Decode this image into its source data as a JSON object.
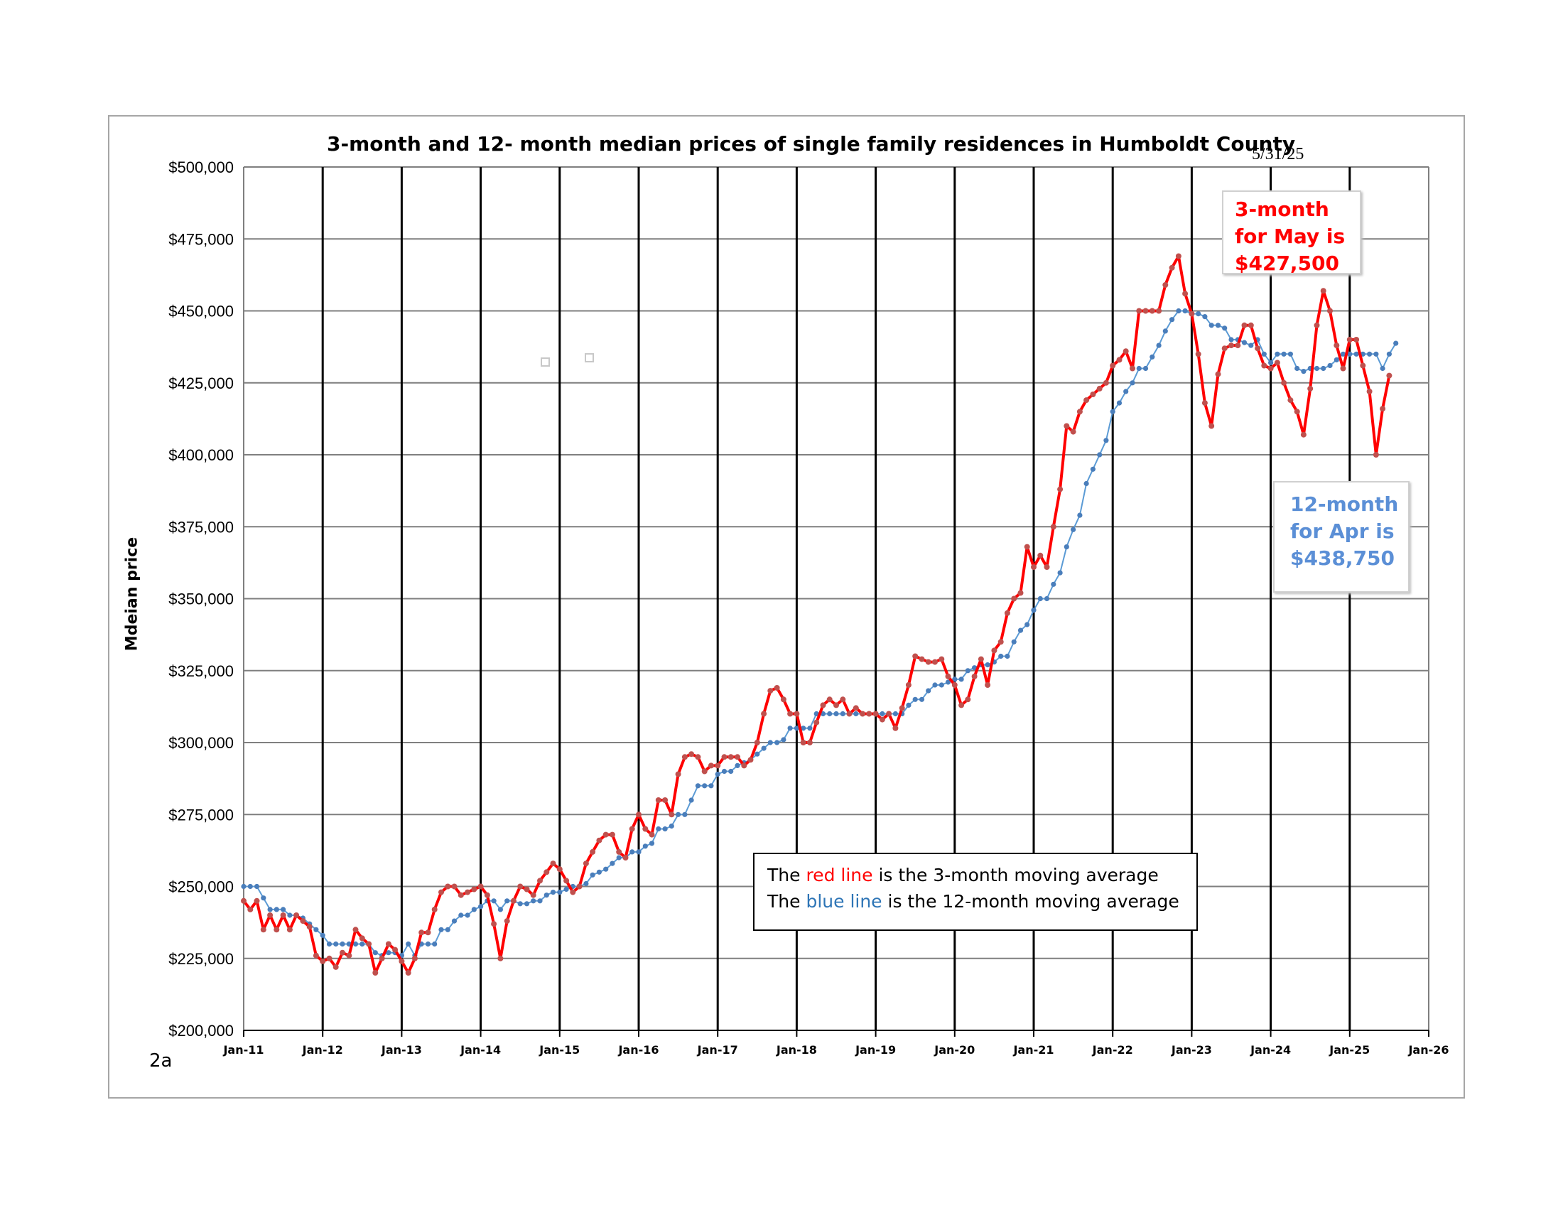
{
  "chart_data": {
    "type": "line",
    "title": "3-month and 12- month median prices of single family residences in Humboldt County",
    "date_stamp": "5/31/25",
    "ylabel": "Mdeian price",
    "corner_label": "2a",
    "ylim": [
      200000,
      500000
    ],
    "y_ticks": [
      200000,
      225000,
      250000,
      275000,
      300000,
      325000,
      350000,
      375000,
      400000,
      425000,
      450000,
      475000,
      500000
    ],
    "y_tick_labels": [
      "$200,000",
      "$225,000",
      "$250,000",
      "$275,000",
      "$300,000",
      "$325,000",
      "$350,000",
      "$375,000",
      "$400,000",
      "$425,000",
      "$450,000",
      "$475,000",
      "$500,000"
    ],
    "x_tick_labels": [
      "Jan-11",
      "Jan-12",
      "Jan-13",
      "Jan-14",
      "Jan-15",
      "Jan-16",
      "Jan-17",
      "Jan-18",
      "Jan-19",
      "Jan-20",
      "Jan-21",
      "Jan-22",
      "Jan-23",
      "Jan-24",
      "Jan-25",
      "Jan-26"
    ],
    "x_start": "Jan-11",
    "grid": true,
    "series": [
      {
        "key": "3-month",
        "color": "#ff0000",
        "marker_color": "#c0504d",
        "values": [
          245000,
          242000,
          245000,
          235000,
          240000,
          235000,
          240000,
          235000,
          240000,
          238000,
          236000,
          226000,
          224000,
          225000,
          222000,
          227000,
          226000,
          235000,
          232000,
          230000,
          220000,
          225000,
          230000,
          228000,
          224000,
          220000,
          225000,
          234000,
          234000,
          242000,
          248000,
          250000,
          250000,
          247000,
          248000,
          249000,
          250000,
          247000,
          237000,
          225000,
          238000,
          245000,
          250000,
          249000,
          247000,
          252000,
          255000,
          258000,
          256000,
          252000,
          248000,
          250000,
          258000,
          262000,
          266000,
          268000,
          268000,
          262000,
          260000,
          270000,
          275000,
          270000,
          268000,
          280000,
          280000,
          275000,
          289000,
          295000,
          296000,
          295000,
          290000,
          292000,
          292000,
          295000,
          295000,
          295000,
          292000,
          294000,
          300000,
          310000,
          318000,
          319000,
          315000,
          310000,
          310000,
          300000,
          300000,
          307000,
          313000,
          315000,
          313000,
          315000,
          310000,
          312000,
          310000,
          310000,
          310000,
          308000,
          310000,
          305000,
          312000,
          320000,
          330000,
          329000,
          328000,
          328000,
          329000,
          323000,
          320000,
          313000,
          315000,
          323000,
          329000,
          320000,
          332000,
          335000,
          345000,
          350000,
          352000,
          368000,
          361000,
          365000,
          361000,
          375000,
          388000,
          410000,
          408000,
          415000,
          419000,
          421000,
          423000,
          425000,
          431000,
          433000,
          436000,
          430000,
          450000,
          450000,
          450000,
          450000,
          459000,
          465000,
          469000,
          456000,
          449000,
          435000,
          418000,
          410000,
          428000,
          437000,
          438000,
          438000,
          445000,
          445000,
          437000,
          431000,
          430000,
          432000,
          425000,
          419000,
          415000,
          407000,
          423000,
          445000,
          457000,
          450000,
          438000,
          430000,
          440000,
          440000,
          431000,
          422000,
          400000,
          416000,
          427500
        ]
      },
      {
        "key": "12-month",
        "color": "#5b9bd5",
        "marker_color": "#4a7ebb",
        "values": [
          250000,
          250000,
          250000,
          246000,
          242000,
          242000,
          242000,
          240000,
          240000,
          239000,
          237000,
          235000,
          233000,
          230000,
          230000,
          230000,
          230000,
          230000,
          230000,
          230000,
          227000,
          226000,
          227000,
          227000,
          226000,
          230000,
          226000,
          230000,
          230000,
          230000,
          235000,
          235000,
          238000,
          240000,
          240000,
          242000,
          243000,
          245000,
          245000,
          242000,
          245000,
          245000,
          244000,
          244000,
          245000,
          245000,
          247000,
          248000,
          248000,
          249000,
          250000,
          250000,
          251000,
          254000,
          255000,
          256000,
          258000,
          260000,
          260000,
          262000,
          262000,
          264000,
          265000,
          270000,
          270000,
          271000,
          275000,
          275000,
          280000,
          285000,
          285000,
          285000,
          289000,
          290000,
          290000,
          292000,
          293000,
          294000,
          296000,
          298000,
          300000,
          300000,
          301000,
          305000,
          305000,
          305000,
          305000,
          310000,
          310000,
          310000,
          310000,
          310000,
          310000,
          310000,
          310000,
          310000,
          310000,
          310000,
          310000,
          310000,
          310000,
          313000,
          315000,
          315000,
          318000,
          320000,
          320000,
          321000,
          322000,
          322000,
          325000,
          326000,
          327000,
          327000,
          328000,
          330000,
          330000,
          335000,
          339000,
          341000,
          346000,
          350000,
          350000,
          355000,
          359000,
          368000,
          374000,
          379000,
          390000,
          395000,
          400000,
          405000,
          415000,
          418000,
          422000,
          425000,
          430000,
          430000,
          434000,
          438000,
          443000,
          447000,
          450000,
          450000,
          449000,
          449000,
          448000,
          445000,
          445000,
          444000,
          440000,
          440000,
          439000,
          438000,
          440000,
          435000,
          432000,
          435000,
          435000,
          435000,
          430000,
          429000,
          430000,
          430000,
          430000,
          431000,
          433000,
          435000,
          435000,
          435000,
          435000,
          435000,
          435000,
          430000,
          435000,
          438750
        ]
      }
    ]
  },
  "callouts": {
    "three_month": [
      "3-month",
      "for May is",
      "$427,500"
    ],
    "twelve_month": [
      "12-month",
      "for Apr is",
      "$438,750"
    ]
  },
  "legend": {
    "line1_pre": "The ",
    "line1_colored": "red line",
    "line1_post": " is the 3-month moving average",
    "line2_pre": "The ",
    "line2_colored": "blue line",
    "line2_post": " is the 12-month moving average"
  },
  "colors": {
    "three_month_line": "#ff0000",
    "twelve_month_line": "#5b9bd5",
    "frame_border": "#a6a6a6"
  }
}
